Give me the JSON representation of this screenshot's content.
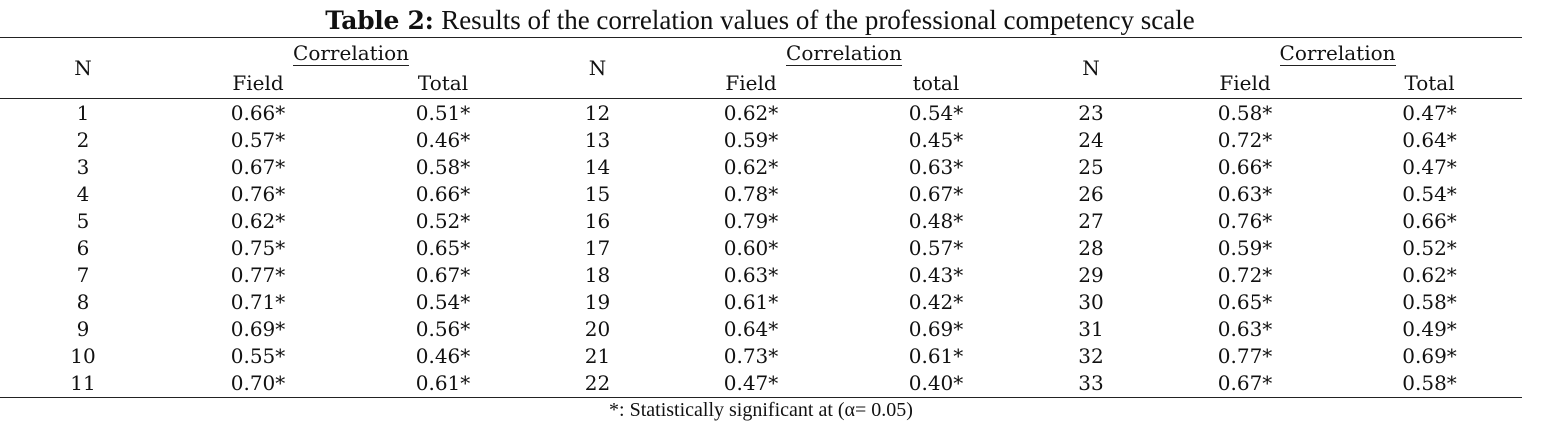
{
  "caption": {
    "label": "Table 2:",
    "title": "Results of the correlation values of the professional competency scale"
  },
  "header": {
    "n_label": "N",
    "correlation_label": "Correlation",
    "field_label": "Field",
    "total_labels": [
      "Total",
      "total",
      "Total"
    ]
  },
  "rows": [
    [
      [
        "1",
        "0.66*",
        "0.51*"
      ],
      [
        "12",
        "0.62*",
        "0.54*"
      ],
      [
        "23",
        "0.58*",
        "0.47*"
      ]
    ],
    [
      [
        "2",
        "0.57*",
        "0.46*"
      ],
      [
        "13",
        "0.59*",
        "0.45*"
      ],
      [
        "24",
        "0.72*",
        "0.64*"
      ]
    ],
    [
      [
        "3",
        "0.67*",
        "0.58*"
      ],
      [
        "14",
        "0.62*",
        "0.63*"
      ],
      [
        "25",
        "0.66*",
        "0.47*"
      ]
    ],
    [
      [
        "4",
        "0.76*",
        "0.66*"
      ],
      [
        "15",
        "0.78*",
        "0.67*"
      ],
      [
        "26",
        "0.63*",
        "0.54*"
      ]
    ],
    [
      [
        "5",
        "0.62*",
        "0.52*"
      ],
      [
        "16",
        "0.79*",
        "0.48*"
      ],
      [
        "27",
        "0.76*",
        "0.66*"
      ]
    ],
    [
      [
        "6",
        "0.75*",
        "0.65*"
      ],
      [
        "17",
        "0.60*",
        "0.57*"
      ],
      [
        "28",
        "0.59*",
        "0.52*"
      ]
    ],
    [
      [
        "7",
        "0.77*",
        "0.67*"
      ],
      [
        "18",
        "0.63*",
        "0.43*"
      ],
      [
        "29",
        "0.72*",
        "0.62*"
      ]
    ],
    [
      [
        "8",
        "0.71*",
        "0.54*"
      ],
      [
        "19",
        "0.61*",
        "0.42*"
      ],
      [
        "30",
        "0.65*",
        "0.58*"
      ]
    ],
    [
      [
        "9",
        "0.69*",
        "0.56*"
      ],
      [
        "20",
        "0.64*",
        "0.69*"
      ],
      [
        "31",
        "0.63*",
        "0.49*"
      ]
    ],
    [
      [
        "10",
        "0.55*",
        "0.46*"
      ],
      [
        "21",
        "0.73*",
        "0.61*"
      ],
      [
        "32",
        "0.77*",
        "0.69*"
      ]
    ],
    [
      [
        "11",
        "0.70*",
        "0.61*"
      ],
      [
        "22",
        "0.47*",
        "0.40*"
      ],
      [
        "33",
        "0.67*",
        "0.58*"
      ]
    ]
  ],
  "note": "*: Statistically significant at (α= 0.05)"
}
